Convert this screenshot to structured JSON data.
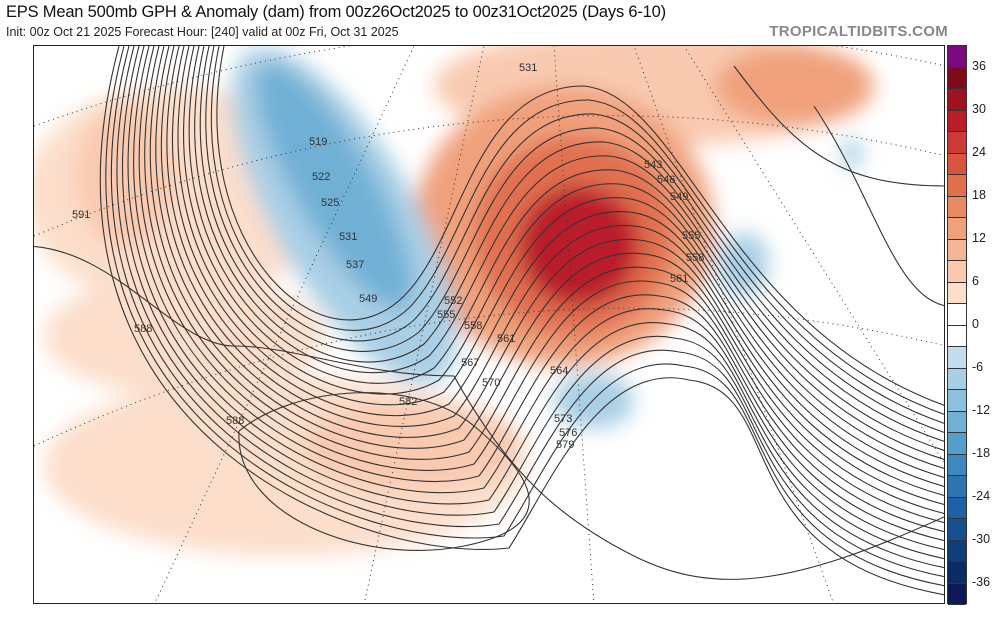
{
  "header": {
    "title": "EPS Mean 500mb GPH & Anomaly (dam) from 00z26Oct2025 to 00z31Oct2025 (Days 6-10)",
    "subtitle": "Init: 00z Oct 21 2025   Forecast Hour: [240]   valid at 00z Fri, Oct 31 2025",
    "brand": "TROPICALTIDBITS.COM"
  },
  "colorbar": {
    "labels": [
      "36",
      "30",
      "24",
      "18",
      "12",
      "6",
      "0",
      "-6",
      "-12",
      "-18",
      "-24",
      "-30",
      "-36"
    ],
    "colors": [
      "#7b0a7e",
      "#7f0a1c",
      "#a0121f",
      "#bb1d29",
      "#cc3a38",
      "#d8553f",
      "#e1704f",
      "#e98a62",
      "#f0a17b",
      "#f5b695",
      "#f9cab0",
      "#fcdecb",
      "#ffffff",
      "#ffffff",
      "#c4dcec",
      "#a9cfe5",
      "#8dc0dd",
      "#71b0d5",
      "#559dcb",
      "#3d89bf",
      "#2c74b2",
      "#1f61a4",
      "#175091",
      "#0f3e79",
      "#0a2c62",
      "#0b1a55"
    ]
  },
  "map": {
    "contour_labels": [
      "591",
      "588",
      "588",
      "519",
      "522",
      "525",
      "531",
      "537",
      "549",
      "552",
      "555",
      "558",
      "561",
      "567",
      "570",
      "564",
      "573",
      "576",
      "579",
      "582",
      "531",
      "543",
      "546",
      "549",
      "555",
      "558",
      "561"
    ]
  }
}
